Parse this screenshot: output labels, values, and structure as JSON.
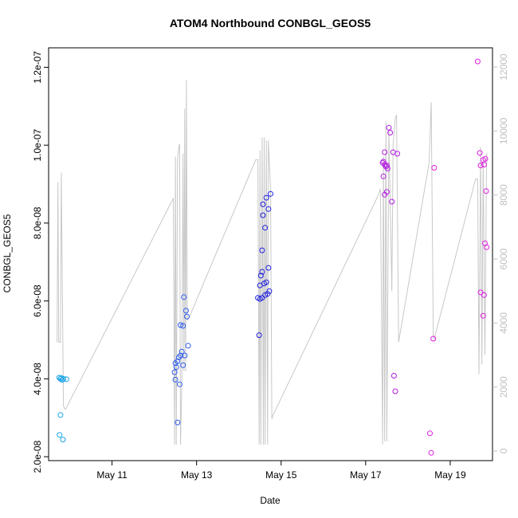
{
  "chart_data": {
    "type": "scatter",
    "title": "ATOM4 Northbound CONBGL_GEOS5",
    "xlabel": "Date",
    "ylabel": "CONBGL_GEOS5",
    "xlim": [
      9.5,
      20.0
    ],
    "ylim": [
      1.9e-08,
      1.25e-07
    ],
    "x_ticks": [
      {
        "v": 11,
        "label": "May 11"
      },
      {
        "v": 13,
        "label": "May 13"
      },
      {
        "v": 15,
        "label": "May 15"
      },
      {
        "v": 17,
        "label": "May 17"
      },
      {
        "v": 19,
        "label": "May 19"
      }
    ],
    "y_ticks": [
      {
        "v": 2e-08,
        "label": "2.0e-08"
      },
      {
        "v": 4e-08,
        "label": "4.0e-08"
      },
      {
        "v": 6e-08,
        "label": "6.0e-08"
      },
      {
        "v": 8e-08,
        "label": "8.0e-08"
      },
      {
        "v": 1e-07,
        "label": "1.0e-07"
      },
      {
        "v": 1.2e-07,
        "label": "1.2e-07"
      }
    ],
    "y2_ticks": [
      {
        "v": 0,
        "label": "0"
      },
      {
        "v": 2000,
        "label": "2000"
      },
      {
        "v": 4000,
        "label": "4000"
      },
      {
        "v": 6000,
        "label": "6000"
      },
      {
        "v": 8000,
        "label": "8000"
      },
      {
        "v": 10000,
        "label": "10000"
      },
      {
        "v": 12000,
        "label": "12000"
      }
    ],
    "y2lim": [
      -300,
      12600
    ],
    "grid": false,
    "legend": "none",
    "colors": {
      "line": "#c8c8c8",
      "flights": [
        "#1aa3e8",
        "#2e5bea",
        "#2020e0",
        "#b21ce0",
        "#e01ce0"
      ]
    },
    "series": [
      {
        "color": "#1aa3e8",
        "points": [
          [
            9.75,
            4.03e-08
          ],
          [
            9.78,
            4e-08
          ],
          [
            9.8,
            4.02e-08
          ],
          [
            9.82,
            3.97e-08
          ],
          [
            9.85,
            4e-08
          ],
          [
            9.92,
            3.99e-08
          ],
          [
            9.78,
            3.07e-08
          ],
          [
            9.76,
            2.56e-08
          ],
          [
            9.84,
            2.44e-08
          ]
        ]
      },
      {
        "color": "#2e5bea",
        "points": [
          [
            12.5,
            4.4e-08
          ],
          [
            12.52,
            4.3e-08
          ],
          [
            12.48,
            4.17e-08
          ],
          [
            12.5,
            3.98e-08
          ],
          [
            12.6,
            3.86e-08
          ],
          [
            12.55,
            4.45e-08
          ],
          [
            12.58,
            4.55e-08
          ],
          [
            12.62,
            4.6e-08
          ],
          [
            12.65,
            4.7e-08
          ],
          [
            12.68,
            4.35e-08
          ],
          [
            12.72,
            4.6e-08
          ],
          [
            12.8,
            4.85e-08
          ],
          [
            12.62,
            5.38e-08
          ],
          [
            12.68,
            5.36e-08
          ],
          [
            12.75,
            5.75e-08
          ],
          [
            12.77,
            5.6e-08
          ],
          [
            12.7,
            6.1e-08
          ],
          [
            12.55,
            2.88e-08
          ]
        ]
      },
      {
        "color": "#2020e0",
        "points": [
          [
            14.45,
            6.08e-08
          ],
          [
            14.5,
            6.05e-08
          ],
          [
            14.55,
            6.08e-08
          ],
          [
            14.62,
            6.15e-08
          ],
          [
            14.68,
            6.18e-08
          ],
          [
            14.72,
            6.25e-08
          ],
          [
            14.5,
            6.4e-08
          ],
          [
            14.55,
            6.75e-08
          ],
          [
            14.52,
            6.65e-08
          ],
          [
            14.6,
            6.45e-08
          ],
          [
            14.65,
            6.48e-08
          ],
          [
            14.7,
            6.85e-08
          ],
          [
            14.55,
            7.3e-08
          ],
          [
            14.62,
            7.88e-08
          ],
          [
            14.57,
            8.2e-08
          ],
          [
            14.7,
            8.36e-08
          ],
          [
            14.57,
            8.48e-08
          ],
          [
            14.65,
            8.65e-08
          ],
          [
            14.75,
            8.75e-08
          ],
          [
            14.48,
            5.12e-08
          ]
        ]
      },
      {
        "color": "#b21ce0",
        "points": [
          [
            17.4,
            9.55e-08
          ],
          [
            17.42,
            9.58e-08
          ],
          [
            17.45,
            9.5e-08
          ],
          [
            17.48,
            9.45e-08
          ],
          [
            17.5,
            9.48e-08
          ],
          [
            17.52,
            9.4e-08
          ],
          [
            17.45,
            9.82e-08
          ],
          [
            17.42,
            9.2e-08
          ],
          [
            17.55,
            1.045e-07
          ],
          [
            17.58,
            1.032e-07
          ],
          [
            17.65,
            9.82e-08
          ],
          [
            17.75,
            9.78e-08
          ],
          [
            17.45,
            8.73e-08
          ],
          [
            17.5,
            8.8e-08
          ],
          [
            17.62,
            8.55e-08
          ],
          [
            17.67,
            4.08e-08
          ],
          [
            17.7,
            3.68e-08
          ]
        ]
      },
      {
        "color": "#e01ce0",
        "points": [
          [
            18.52,
            2.6e-08
          ],
          [
            18.55,
            2.1e-08
          ],
          [
            18.6,
            5.03e-08
          ],
          [
            18.62,
            9.42e-08
          ],
          [
            19.65,
            1.215e-07
          ],
          [
            19.7,
            9.8e-08
          ],
          [
            19.72,
            9.48e-08
          ],
          [
            19.78,
            9.62e-08
          ],
          [
            19.8,
            9.5e-08
          ],
          [
            19.83,
            9.65e-08
          ],
          [
            19.85,
            8.82e-08
          ],
          [
            19.82,
            7.48e-08
          ],
          [
            19.86,
            7.38e-08
          ],
          [
            19.72,
            6.22e-08
          ],
          [
            19.8,
            6.15e-08
          ],
          [
            19.78,
            5.62e-08
          ]
        ]
      }
    ],
    "altitude_line": [
      [
        9.7,
        3400
      ],
      [
        9.72,
        8400
      ],
      [
        9.74,
        3400
      ],
      [
        9.78,
        3400
      ],
      [
        9.8,
        8700
      ],
      [
        9.85,
        1400
      ],
      [
        9.9,
        1300
      ],
      [
        12.45,
        7900
      ],
      [
        12.48,
        200
      ],
      [
        12.5,
        9200
      ],
      [
        12.52,
        200
      ],
      [
        12.55,
        9100
      ],
      [
        12.58,
        9500
      ],
      [
        12.6,
        9600
      ],
      [
        12.62,
        200
      ],
      [
        12.65,
        2000
      ],
      [
        12.68,
        9300
      ],
      [
        12.7,
        2500
      ],
      [
        12.72,
        10700
      ],
      [
        12.74,
        2500
      ],
      [
        12.76,
        11600
      ],
      [
        12.78,
        4100
      ],
      [
        12.8,
        4100
      ],
      [
        14.4,
        9100
      ],
      [
        14.45,
        9100
      ],
      [
        14.48,
        200
      ],
      [
        14.5,
        9400
      ],
      [
        14.52,
        200
      ],
      [
        14.55,
        9800
      ],
      [
        14.58,
        200
      ],
      [
        14.6,
        9800
      ],
      [
        14.62,
        200
      ],
      [
        14.65,
        9700
      ],
      [
        14.68,
        200
      ],
      [
        14.7,
        9700
      ],
      [
        14.75,
        8200
      ],
      [
        14.78,
        1000
      ],
      [
        14.8,
        1100
      ],
      [
        17.3,
        8000
      ],
      [
        17.35,
        8200
      ],
      [
        17.4,
        200
      ],
      [
        17.42,
        9200
      ],
      [
        17.45,
        300
      ],
      [
        17.48,
        10300
      ],
      [
        17.5,
        300
      ],
      [
        17.55,
        10000
      ],
      [
        17.58,
        7800
      ],
      [
        17.62,
        5000
      ],
      [
        17.65,
        9600
      ],
      [
        17.7,
        10400
      ],
      [
        17.73,
        10500
      ],
      [
        17.78,
        3400
      ],
      [
        18.5,
        9000
      ],
      [
        18.55,
        10900
      ],
      [
        18.6,
        3600
      ],
      [
        18.62,
        3500
      ],
      [
        19.6,
        8500
      ],
      [
        19.65,
        8500
      ],
      [
        19.68,
        2400
      ],
      [
        19.72,
        9500
      ],
      [
        19.75,
        2700
      ],
      [
        19.78,
        9200
      ],
      [
        19.82,
        3000
      ],
      [
        19.86,
        9300
      ]
    ]
  }
}
